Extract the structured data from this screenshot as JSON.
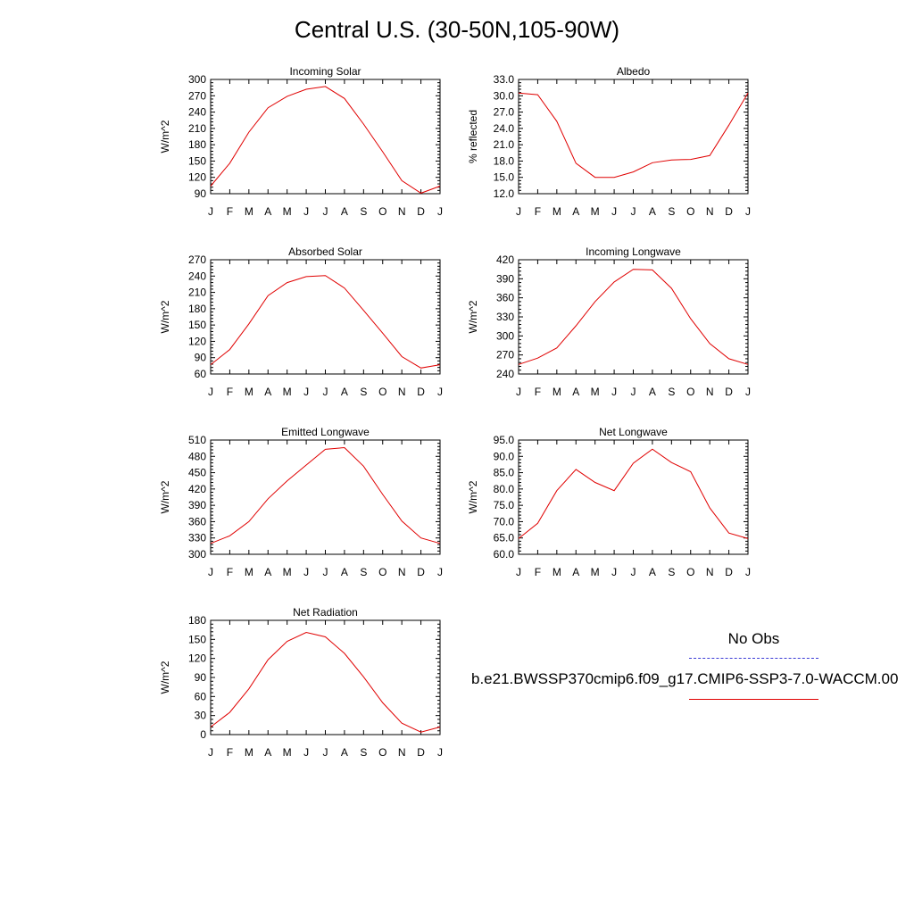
{
  "title": "Central U.S. (30-50N,105-90W)",
  "legend": {
    "obs_label": "No Obs",
    "obs_color": "#3b3bd6",
    "model_label": "b.e21.BWSSP370cmip6.f09_g17.CMIP6-SSP3-7.0-WACCM.00",
    "model_color": "#e00000"
  },
  "chart_data": [
    {
      "type": "line",
      "title": "Incoming Solar",
      "ylabel": "W/m^2",
      "categories": [
        "J",
        "F",
        "M",
        "A",
        "M",
        "J",
        "J",
        "A",
        "S",
        "O",
        "N",
        "D",
        "J"
      ],
      "ylim": [
        90,
        300
      ],
      "yticks": [
        90,
        120,
        150,
        180,
        210,
        240,
        270,
        300
      ],
      "ytick_labels": [
        "90",
        "120",
        "150",
        "180",
        "210",
        "240",
        "270",
        "300"
      ],
      "series": [
        {
          "values": [
            104,
            146,
            203,
            248,
            269,
            282,
            287,
            265,
            218,
            167,
            114,
            91,
            104
          ]
        }
      ]
    },
    {
      "type": "line",
      "title": "Albedo",
      "ylabel": "% reflected",
      "categories": [
        "J",
        "F",
        "M",
        "A",
        "M",
        "J",
        "J",
        "A",
        "S",
        "O",
        "N",
        "D",
        "J"
      ],
      "ylim": [
        12,
        33
      ],
      "yticks": [
        12,
        15,
        18,
        21,
        24,
        27,
        30,
        33
      ],
      "ytick_labels": [
        "12.0",
        "15.0",
        "18.0",
        "21.0",
        "24.0",
        "27.0",
        "30.0",
        "33.0"
      ],
      "series": [
        {
          "values": [
            30.5,
            30.2,
            25.3,
            17.6,
            15.0,
            15.0,
            16.0,
            17.7,
            18.2,
            18.3,
            19.0,
            24.6,
            30.5
          ]
        }
      ]
    },
    {
      "type": "line",
      "title": "Absorbed Solar",
      "ylabel": "W/m^2",
      "categories": [
        "J",
        "F",
        "M",
        "A",
        "M",
        "J",
        "J",
        "A",
        "S",
        "O",
        "N",
        "D",
        "J"
      ],
      "ylim": [
        60,
        270
      ],
      "yticks": [
        60,
        90,
        120,
        150,
        180,
        210,
        240,
        270
      ],
      "ytick_labels": [
        "60",
        "90",
        "120",
        "150",
        "180",
        "210",
        "240",
        "270"
      ],
      "series": [
        {
          "values": [
            77,
            105,
            152,
            204,
            228,
            239,
            241,
            218,
            177,
            135,
            92,
            71,
            77
          ]
        }
      ]
    },
    {
      "type": "line",
      "title": "Incoming Longwave",
      "ylabel": "W/m^2",
      "categories": [
        "J",
        "F",
        "M",
        "A",
        "M",
        "J",
        "J",
        "A",
        "S",
        "O",
        "N",
        "D",
        "J"
      ],
      "ylim": [
        240,
        420
      ],
      "yticks": [
        240,
        270,
        300,
        330,
        360,
        390,
        420
      ],
      "ytick_labels": [
        "240",
        "270",
        "300",
        "330",
        "360",
        "390",
        "420"
      ],
      "series": [
        {
          "values": [
            255,
            265,
            281,
            316,
            354,
            385,
            405,
            404,
            375,
            327,
            288,
            264,
            255
          ]
        }
      ]
    },
    {
      "type": "line",
      "title": "Emitted Longwave",
      "ylabel": "W/m^2",
      "categories": [
        "J",
        "F",
        "M",
        "A",
        "M",
        "J",
        "J",
        "A",
        "S",
        "O",
        "N",
        "D",
        "J"
      ],
      "ylim": [
        300,
        510
      ],
      "yticks": [
        300,
        330,
        360,
        390,
        420,
        450,
        480,
        510
      ],
      "ytick_labels": [
        "300",
        "330",
        "360",
        "390",
        "420",
        "450",
        "480",
        "510"
      ],
      "series": [
        {
          "values": [
            320,
            334,
            360,
            402,
            435,
            464,
            493,
            496,
            462,
            410,
            361,
            330,
            320
          ]
        }
      ]
    },
    {
      "type": "line",
      "title": "Net Longwave",
      "ylabel": "W/m^2",
      "categories": [
        "J",
        "F",
        "M",
        "A",
        "M",
        "J",
        "J",
        "A",
        "S",
        "O",
        "N",
        "D",
        "J"
      ],
      "ylim": [
        60,
        95
      ],
      "yticks": [
        60,
        65,
        70,
        75,
        80,
        85,
        90,
        95
      ],
      "ytick_labels": [
        "60.0",
        "65.0",
        "70.0",
        "75.0",
        "80.0",
        "85.0",
        "90.0",
        "95.0"
      ],
      "series": [
        {
          "values": [
            64.8,
            69.5,
            79.5,
            86.0,
            82.0,
            79.5,
            87.9,
            92.2,
            88.1,
            85.3,
            74.2,
            66.5,
            64.8
          ]
        }
      ]
    },
    {
      "type": "line",
      "title": "Net Radiation",
      "ylabel": "W/m^2",
      "categories": [
        "J",
        "F",
        "M",
        "A",
        "M",
        "J",
        "J",
        "A",
        "S",
        "O",
        "N",
        "D",
        "J"
      ],
      "ylim": [
        0,
        180
      ],
      "yticks": [
        0,
        30,
        60,
        90,
        120,
        150,
        180
      ],
      "ytick_labels": [
        "0",
        "30",
        "60",
        "90",
        "120",
        "150",
        "180"
      ],
      "series": [
        {
          "values": [
            12,
            35,
            72,
            118,
            147,
            161,
            154,
            128,
            91,
            50,
            18,
            4,
            12
          ]
        }
      ]
    }
  ]
}
